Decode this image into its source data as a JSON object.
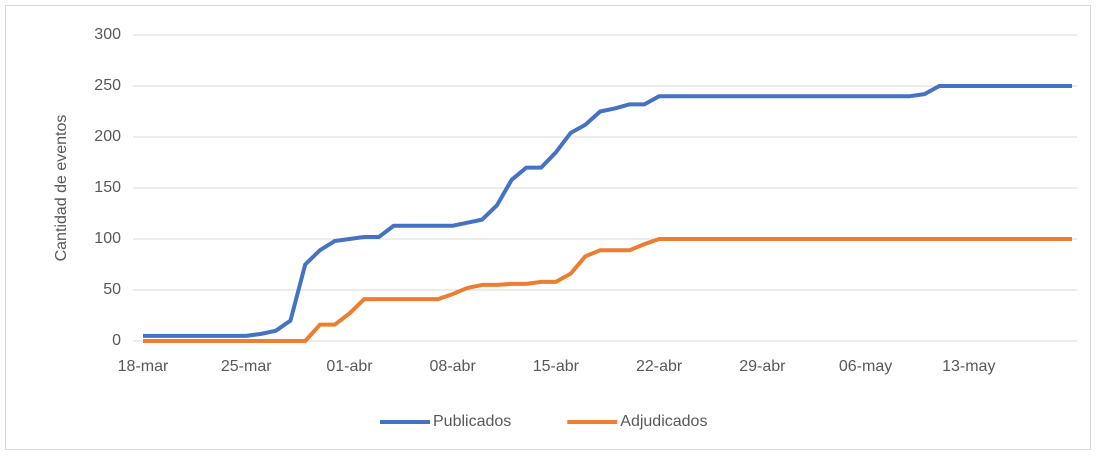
{
  "chart_data": {
    "type": "line",
    "y_axis_label": "Cantidad de eventos",
    "categories": [
      "18-mar",
      null,
      null,
      null,
      null,
      null,
      null,
      "25-mar",
      null,
      null,
      null,
      null,
      null,
      null,
      "01-abr",
      null,
      null,
      null,
      null,
      null,
      null,
      "08-abr",
      null,
      null,
      null,
      null,
      null,
      null,
      "15-abr",
      null,
      null,
      null,
      null,
      null,
      null,
      "22-abr",
      null,
      null,
      null,
      null,
      null,
      null,
      "29-abr",
      null,
      null,
      null,
      null,
      null,
      null,
      "06-may",
      null,
      null,
      null,
      null,
      null,
      null,
      "13-may",
      null,
      null,
      null,
      null,
      null,
      null,
      null
    ],
    "series": [
      {
        "name": "Publicados",
        "color": "#4472c4",
        "values": [
          5,
          5,
          5,
          5,
          5,
          5,
          5,
          5,
          7,
          10,
          20,
          75,
          89,
          98,
          100,
          102,
          102,
          113,
          113,
          113,
          113,
          113,
          116,
          119,
          133,
          158,
          170,
          170,
          185,
          204,
          212,
          225,
          228,
          232,
          232,
          240,
          240,
          240,
          240,
          240,
          240,
          240,
          240,
          240,
          240,
          240,
          240,
          240,
          240,
          240,
          240,
          240,
          240,
          242,
          250,
          250,
          250,
          250,
          250,
          250,
          250,
          250,
          250,
          250
        ]
      },
      {
        "name": "Adjudicados",
        "color": "#ed7d31",
        "values": [
          0,
          0,
          0,
          0,
          0,
          0,
          0,
          0,
          0,
          0,
          0,
          0,
          16,
          16,
          27,
          41,
          41,
          41,
          41,
          41,
          41,
          46,
          52,
          55,
          55,
          56,
          56,
          58,
          58,
          66,
          83,
          89,
          89,
          89,
          95,
          100,
          100,
          100,
          100,
          100,
          100,
          100,
          100,
          100,
          100,
          100,
          100,
          100,
          100,
          100,
          100,
          100,
          100,
          100,
          100,
          100,
          100,
          100,
          100,
          100,
          100,
          100,
          100,
          100
        ]
      }
    ],
    "ylim": [
      0,
      300
    ],
    "yticks": [
      0,
      50,
      100,
      150,
      200,
      250,
      300
    ],
    "grid": true,
    "legend": "bottom"
  }
}
